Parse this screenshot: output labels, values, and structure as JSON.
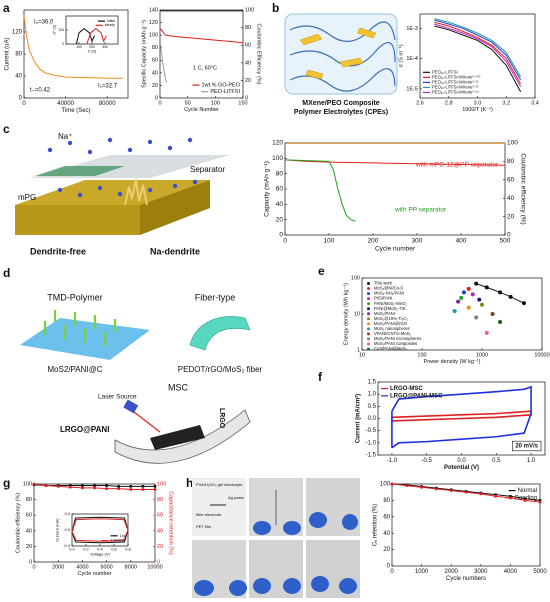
{
  "panel_letters": [
    "a",
    "b",
    "c",
    "d",
    "e",
    "f",
    "g",
    "h"
  ],
  "figure_texts": [
    "MXene/PEO Composite",
    "Polymer Electrolytes (CPEs)",
    "Na⁺",
    "mPG",
    "Separator",
    "Dendrite-free",
    "Na-dendrite",
    "TMD-Polymer",
    "Fiber-type",
    "MoS2/PANI@C",
    "PEDOT/rGO/MoS₂ fiber",
    "MSC",
    "Laser Source",
    "LRGO@PANI",
    "LRGO",
    "PVA/H₂SO₄ gel electrolyte",
    "Ag paste",
    "fiber electrode",
    "PET film"
  ],
  "chart_data": [
    {
      "type": "line",
      "xlabel": "Time (Sec)",
      "ylabel": "Current (uA)",
      "xlim": [
        0,
        100000
      ],
      "xticks": [
        0,
        40000,
        80000
      ],
      "ylim": [
        0,
        160
      ],
      "yticks": [
        0,
        40,
        80,
        120
      ],
      "series": [
        {
          "color": "#f08a1c",
          "x": [
            0,
            2000,
            5000,
            10000,
            15000,
            20000,
            30000,
            40000,
            60000,
            80000,
            95000
          ],
          "values": [
            150,
            118,
            88,
            66,
            53,
            46,
            41,
            38,
            37,
            36,
            36
          ]
        }
      ],
      "annotations": [
        "I₀=36.0",
        "Iₛ=32.7",
        "t₊=0.42"
      ]
    },
    {
      "type": "line",
      "xlabel": "Cycle Number",
      "ylabel": "Specific Capacity (mAh g⁻¹)",
      "y2label": "Coulombic Efficiency (%)",
      "xlim": [
        0,
        150
      ],
      "xticks": [
        0,
        50,
        100,
        150
      ],
      "ylim": [
        0,
        140
      ],
      "yticks": [
        0,
        20,
        40,
        60,
        80,
        100,
        120,
        140
      ],
      "y2lim": [
        0,
        100
      ],
      "y2ticks": [
        0,
        20,
        40,
        60,
        80,
        100
      ],
      "legend": "lower right",
      "series": [
        {
          "name": "1wt.% GO-PEO",
          "color": "#e02020",
          "x": [
            1,
            10,
            25,
            50,
            75,
            100,
            125,
            150
          ],
          "values": [
            110,
            100,
            98,
            96,
            94,
            92,
            90,
            88
          ]
        },
        {
          "name": "PEO-LiTFSI",
          "color": "#999999",
          "x": [
            1,
            3,
            5,
            8,
            10,
            12
          ],
          "values": [
            85,
            70,
            55,
            40,
            30,
            25
          ]
        },
        {
          "color": "#222222",
          "axis": "y2",
          "x": [
            1,
            10,
            50,
            100,
            150
          ],
          "values": [
            99,
            99,
            99,
            99,
            99
          ]
        }
      ],
      "annotations": [
        "1 C, 60°C"
      ]
    },
    {
      "type": "line",
      "xlabel": "1000/T (K⁻¹)",
      "ylabel": "σ (S m⁻¹)",
      "ylog": true,
      "xlim": [
        2.6,
        3.4
      ],
      "xticks": [
        2.6,
        2.8,
        {
          "value": 3,
          "label": "3.0"
        },
        3.2,
        3.4
      ],
      "ylim": [
        5e-06,
        0.003
      ],
      "yticks": [
        {
          "value": 1e-05,
          "label": "1E-5"
        },
        {
          "value": 0.0001,
          "label": "1E-4"
        },
        {
          "value": 0.001,
          "label": "1E-3"
        }
      ],
      "legend": "lower left",
      "series": [
        {
          "name": "PEO₁₀-LiTFSI",
          "color": "#111111",
          "x": [
            2.7,
            2.8,
            2.9,
            3.0,
            3.1,
            3.2,
            3.3
          ],
          "values": [
            0.0012,
            0.0009,
            0.0006,
            0.0004,
            0.0002,
            6e-05,
            8e-06
          ]
        },
        {
          "name": "PEO₁₀-LiTFSI-MXene⁰·⁰⁰⁵",
          "color": "#e02020",
          "x": [
            2.7,
            2.8,
            2.9,
            3.0,
            3.1,
            3.2,
            3.3
          ],
          "values": [
            0.0016,
            0.0012,
            0.0008,
            0.0005,
            0.00028,
            0.0001,
            1.5e-05
          ]
        },
        {
          "name": "PEO₁₀-LiTFSI-MXene⁰·⁰¹",
          "color": "#2040d0",
          "x": [
            2.7,
            2.8,
            2.9,
            3.0,
            3.1,
            3.2,
            3.3
          ],
          "values": [
            0.0019,
            0.0014,
            0.001,
            0.0006,
            0.00035,
            0.00013,
            2e-05
          ]
        },
        {
          "name": "PEO₁₀-LiTFSI-MXene⁰·⁰²",
          "color": "#1a9a9a",
          "x": [
            2.7,
            2.8,
            2.9,
            3.0,
            3.1,
            3.2,
            3.3
          ],
          "values": [
            0.0021,
            0.0016,
            0.0011,
            0.0007,
            0.0004,
            0.00016,
            2.5e-05
          ]
        },
        {
          "name": "PEO₁₀-LiTFSI-MXene⁰·⁰⁴",
          "color": "#c020c0",
          "x": [
            2.7,
            2.8,
            2.9,
            3.0,
            3.1,
            3.2,
            3.3
          ],
          "values": [
            0.0014,
            0.001,
            0.0007,
            0.00045,
            0.00025,
            8e-05,
            1.2e-05
          ]
        }
      ]
    },
    {
      "type": "line",
      "xlabel": "Cycle number",
      "ylabel": "Capacity (mAh g⁻¹)",
      "y2label": "Coulombic efficiency (%)",
      "xlim": [
        0,
        500
      ],
      "xticks": [
        0,
        100,
        200,
        300,
        400,
        500
      ],
      "ylim": [
        0,
        120
      ],
      "yticks": [
        0,
        20,
        40,
        60,
        80,
        100,
        120
      ],
      "y2lim": [
        0,
        100
      ],
      "y2ticks": [
        0,
        20,
        40,
        60,
        80,
        100
      ],
      "legend": "inline",
      "series": [
        {
          "name": "with mPG-12@PP separator",
          "color": "#e02020",
          "x": [
            1,
            50,
            100,
            200,
            300,
            400,
            500
          ],
          "values": [
            98,
            96,
            95,
            94,
            93,
            92,
            91
          ]
        },
        {
          "name": "with PP separator",
          "color": "#20a020",
          "x": [
            1,
            50,
            100,
            110,
            120,
            130,
            140,
            150,
            160
          ],
          "values": [
            98,
            97,
            96,
            85,
            60,
            40,
            25,
            20,
            18
          ]
        },
        {
          "color": "#f0a040",
          "axis": "y2",
          "x": [
            1,
            100,
            200,
            300,
            400,
            500
          ],
          "values": [
            99.5,
            99.5,
            99.5,
            99.5,
            99.5,
            99.5
          ]
        }
      ]
    },
    {
      "type": "scatter",
      "xlabel": "Power density (W kg⁻¹)",
      "ylabel": "Energy density (Wh kg⁻¹)",
      "xlog": true,
      "ylog": true,
      "xlim": [
        10,
        10000
      ],
      "xticks": [
        10,
        100,
        1000,
        10000
      ],
      "ylim": [
        1,
        100
      ],
      "yticks": [
        1,
        10,
        100
      ],
      "legend": "upper left",
      "series": [
        {
          "name": "This work",
          "color": "#111111",
          "mode": "line",
          "x": [
            800,
            1200,
            2000,
            3000,
            5000
          ],
          "values": [
            70,
            55,
            40,
            30,
            20
          ]
        },
        {
          "name": "MoS₂@Ni/Co-S",
          "color": "#e02020",
          "x": [
            600
          ],
          "values": [
            50
          ]
        },
        {
          "name": "MoS₂-NH₂/PANI",
          "color": "#2040d0",
          "x": [
            500
          ],
          "values": [
            40
          ]
        },
        {
          "name": "Pt/SiPANI",
          "color": "#c020c0",
          "x": [
            700
          ],
          "values": [
            35
          ]
        },
        {
          "name": "PANI/MoS₂-MnO₂",
          "color": "#20a020",
          "x": [
            450
          ],
          "values": [
            28
          ]
        },
        {
          "name": "PANI@MoS₂-TiS",
          "color": "#1a1a80",
          "x": [
            900
          ],
          "values": [
            25
          ]
        },
        {
          "name": "MoS₂/PANI",
          "color": "#8020a0",
          "x": [
            400
          ],
          "values": [
            22
          ]
        },
        {
          "name": "MoS₂@15%-Ti₃C₂",
          "color": "#808020",
          "x": [
            1000
          ],
          "values": [
            18
          ]
        },
        {
          "name": "MoS₂/PANI@rGO",
          "color": "#f08a1c",
          "x": [
            600
          ],
          "values": [
            15
          ]
        },
        {
          "name": "MoS₂ nanospheres",
          "color": "#1a9a9a",
          "x": [
            350
          ],
          "values": [
            12
          ]
        },
        {
          "name": "VPANI/CNT/e-MoS₂",
          "color": "#804020",
          "x": [
            1500
          ],
          "values": [
            10
          ]
        },
        {
          "name": "MoS₂/PANI microspheres",
          "color": "#808080",
          "x": [
            800
          ],
          "values": [
            8
          ]
        },
        {
          "name": "MoS₂/PANI composites",
          "color": "#e060a0",
          "x": [
            1200
          ],
          "values": [
            3
          ]
        },
        {
          "name": "CuS/PANI@MoS₂",
          "color": "#206020",
          "x": [
            2000
          ],
          "values": [
            6
          ]
        }
      ]
    },
    {
      "type": "line",
      "xlabel": "Potential (V)",
      "ylabel": "Current (mA/cm²)",
      "xlim": [
        -1.2,
        1.2
      ],
      "xticks": [
        {
          "value": -1,
          "label": "-1.0"
        },
        -0.5,
        {
          "value": 0,
          "label": "0.0"
        },
        0.5,
        {
          "value": 1,
          "label": "1.0"
        }
      ],
      "ylim": [
        -1.5,
        1.5
      ],
      "yticks": [
        -1.5,
        {
          "value": -1,
          "label": "-1.0"
        },
        -0.5,
        {
          "value": 0,
          "label": "0.0"
        },
        0.5,
        {
          "value": 1,
          "label": "1.0"
        },
        1.5
      ],
      "legend": "upper left",
      "series": [
        {
          "name": "LRGO-MSC",
          "color": "#e02020",
          "x": [
            -1,
            -0.5,
            0,
            0.5,
            1,
            1,
            0.5,
            0,
            -0.5,
            -1,
            -1
          ],
          "values": [
            -0.1,
            -0.05,
            0,
            0.05,
            0.15,
            0.3,
            0.2,
            0.15,
            0.1,
            0.05,
            -0.1
          ]
        },
        {
          "name": "LRGO@PANI-MSC",
          "color": "#2030e0",
          "x": [
            -1,
            -0.9,
            -0.5,
            0,
            0.5,
            0.9,
            1,
            1,
            0.9,
            0.5,
            0,
            -0.5,
            -0.9,
            -1,
            -1
          ],
          "values": [
            -1.2,
            -1.0,
            -0.95,
            -0.85,
            -0.75,
            -0.6,
            0.2,
            1.3,
            1.2,
            1.1,
            1.0,
            0.9,
            0.8,
            0.3,
            -1.2
          ]
        }
      ],
      "annotations": [
        "20 mV/s"
      ]
    },
    {
      "type": "line",
      "xlabel": "Cycle number",
      "ylabel": "Coulombic efficiency (%)",
      "y2label": "Capacitance retention (%)",
      "y2color": "#e02020",
      "xlim": [
        0,
        10000
      ],
      "xticks": [
        0,
        2000,
        4000,
        6000,
        8000,
        10000
      ],
      "ylim": [
        0,
        100
      ],
      "yticks": [
        0,
        20,
        40,
        60,
        80,
        100
      ],
      "y2lim": [
        0,
        100
      ],
      "y2ticks": [
        0,
        20,
        40,
        60,
        80,
        100
      ],
      "series": [
        {
          "color": "#111111",
          "markers": true,
          "x": [
            0,
            1000,
            2000,
            3000,
            4000,
            5000,
            6000,
            7000,
            8000,
            9000,
            10000
          ],
          "values": [
            99,
            98,
            98,
            98,
            98,
            98,
            98,
            97,
            97,
            97,
            97
          ]
        },
        {
          "color": "#e02020",
          "axis": "y2",
          "markers": true,
          "x": [
            0,
            1000,
            2000,
            3000,
            4000,
            5000,
            6000,
            7000,
            8000,
            9000,
            10000
          ],
          "values": [
            100,
            98,
            97,
            96,
            95,
            95,
            94,
            94,
            93,
            93,
            93
          ]
        }
      ]
    },
    {
      "type": "line",
      "xlabel": "Cycle numbers",
      "ylabel": "Cᵥ retention (%)",
      "xlim": [
        0,
        5000
      ],
      "xticks": [
        0,
        1000,
        2000,
        3000,
        4000,
        5000
      ],
      "ylim": [
        0,
        100
      ],
      "yticks": [
        0,
        20,
        40,
        60,
        80,
        100
      ],
      "legend": "upper right",
      "series": [
        {
          "name": "Normal",
          "color": "#111111",
          "markers": true,
          "x": [
            0,
            500,
            1000,
            1500,
            2000,
            2500,
            3000,
            3500,
            4000,
            4500,
            5000
          ],
          "values": [
            100,
            99,
            97,
            95,
            93,
            91,
            89,
            87,
            85,
            82,
            80
          ]
        },
        {
          "name": "Bending",
          "color": "#e02020",
          "markers": true,
          "x": [
            0,
            500,
            1000,
            1500,
            2000,
            2500,
            3000,
            3500,
            4000,
            4500,
            5000
          ],
          "values": [
            100,
            98,
            96,
            94,
            92,
            90,
            88,
            85,
            83,
            80,
            78
          ]
        }
      ]
    },
    {
      "type": "line",
      "xlabel": "Voltage (V)",
      "ylabel": "Current (mA)",
      "xlim": [
        0,
        0.8
      ],
      "xticks": [
        {
          "value": 0,
          "label": "0.0"
        },
        0.2,
        0.4,
        0.6,
        0.8
      ],
      "ylim": [
        -0.4,
        0.4
      ],
      "yticks": [
        -0.4,
        {
          "value": 0,
          "label": "0.0"
        },
        0.4
      ],
      "legend": "lower right",
      "series": [
        {
          "name": "1st",
          "color": "#111111",
          "x": [
            0,
            0.05,
            0.4,
            0.75,
            0.8,
            0.75,
            0.4,
            0.05,
            0
          ],
          "values": [
            -0.05,
            -0.3,
            -0.32,
            -0.3,
            0,
            0.3,
            0.32,
            0.3,
            -0.05
          ]
        },
        {
          "name": "10000th",
          "color": "#e02020",
          "x": [
            0,
            0.06,
            0.4,
            0.74,
            0.8,
            0.74,
            0.4,
            0.06,
            0
          ],
          "values": [
            -0.04,
            -0.26,
            -0.28,
            -0.26,
            0,
            0.26,
            0.28,
            0.26,
            -0.04
          ]
        }
      ]
    },
    {
      "type": "line",
      "xlabel": "Z' (Ω)",
      "ylabel": "-Z'' (Ω)",
      "xlim": [
        0,
        400
      ],
      "xticks": [
        100,
        200,
        300
      ],
      "ylim": [
        0,
        200
      ],
      "yticks": [
        0,
        100
      ],
      "legend": "upper right",
      "series": [
        {
          "name": "initial",
          "color": "#111111",
          "x": [
            80,
            100,
            140,
            180,
            200,
            220
          ],
          "values": [
            0,
            80,
            110,
            80,
            20,
            60
          ]
        },
        {
          "name": "steady",
          "color": "#e02020",
          "x": [
            160,
            190,
            230,
            270,
            290,
            310
          ],
          "values": [
            0,
            80,
            110,
            80,
            20,
            60
          ]
        }
      ]
    }
  ]
}
